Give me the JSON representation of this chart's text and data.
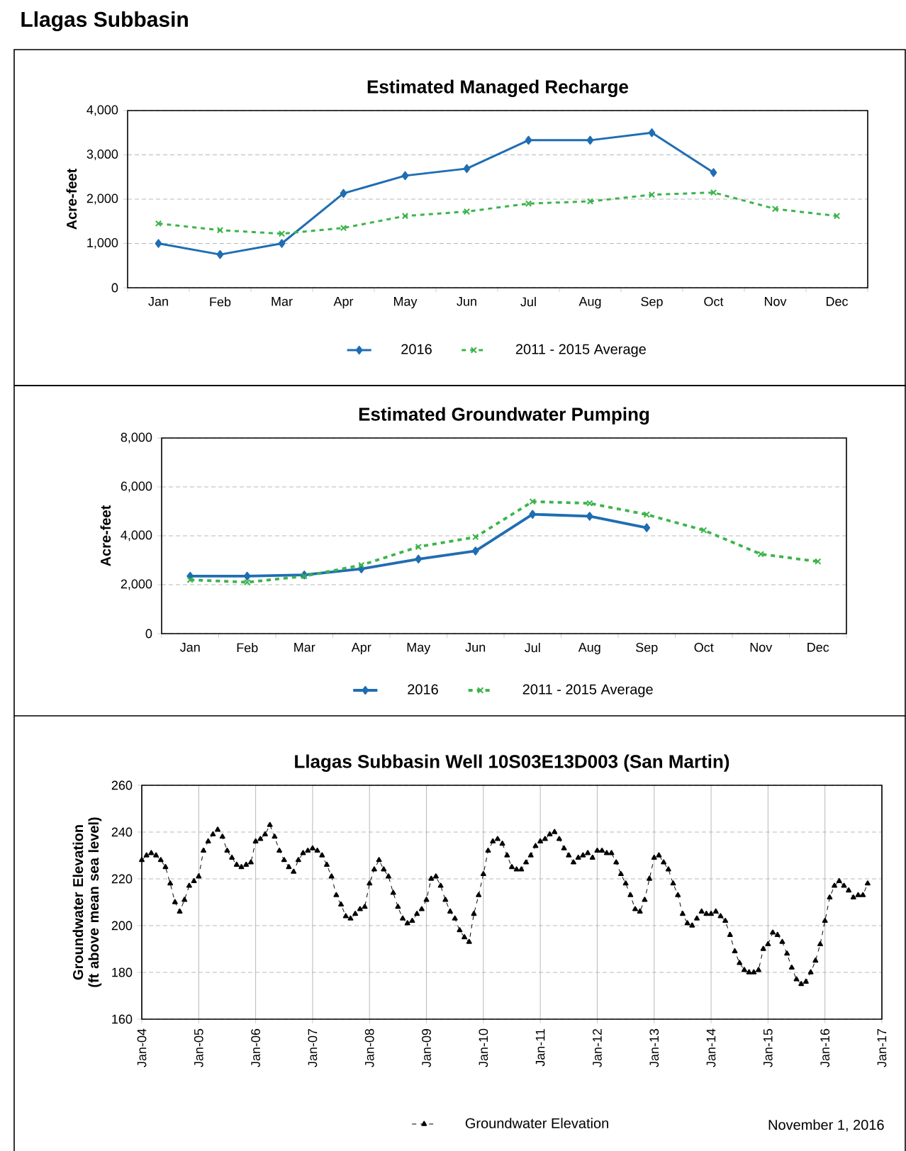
{
  "chart_data": [
    {
      "type": "line",
      "title": "Estimated Managed Recharge",
      "ylabel": "Acre-feet",
      "annotations": [
        "Llagas Subbasin"
      ],
      "categories": [
        "Jan",
        "Feb",
        "Mar",
        "Apr",
        "May",
        "Jun",
        "Jul",
        "Aug",
        "Sep",
        "Oct",
        "Nov",
        "Dec"
      ],
      "ylim": [
        0,
        4000
      ],
      "yticks": [
        0,
        {
          "value": 1000,
          "label": "1,000"
        },
        {
          "value": 2000,
          "label": "2,000"
        },
        {
          "value": 3000,
          "label": "3,000"
        },
        {
          "value": 4000,
          "label": "4,000"
        }
      ],
      "grid": "y",
      "legend": "bottom",
      "series": [
        {
          "name": "2016",
          "color": "#1f6db3",
          "marker": "diamond",
          "line_style": "solid",
          "values": [
            1000,
            750,
            1000,
            2130,
            2530,
            2690,
            3330,
            3330,
            3500,
            2600,
            null,
            null
          ]
        },
        {
          "name": "2011 - 2015 Average",
          "color": "#3cb44b",
          "marker": "cross",
          "line_style": "dashed",
          "values": [
            1450,
            1300,
            1220,
            1350,
            1620,
            1720,
            1900,
            1950,
            2100,
            2150,
            1780,
            1620
          ]
        }
      ]
    },
    {
      "type": "line",
      "title": "Estimated Groundwater Pumping",
      "ylabel": "Acre-feet",
      "categories": [
        "Jan",
        "Feb",
        "Mar",
        "Apr",
        "May",
        "Jun",
        "Jul",
        "Aug",
        "Sep",
        "Oct",
        "Nov",
        "Dec"
      ],
      "ylim": [
        0,
        8000
      ],
      "yticks": [
        0,
        {
          "value": 2000,
          "label": "2,000"
        },
        {
          "value": 4000,
          "label": "4,000"
        },
        {
          "value": 6000,
          "label": "6,000"
        },
        {
          "value": 8000,
          "label": "8,000"
        }
      ],
      "grid": "y",
      "legend": "bottom",
      "series": [
        {
          "name": "2016",
          "color": "#1f6db3",
          "marker": "diamond",
          "line_style": "solid",
          "values": [
            2350,
            2350,
            2400,
            2650,
            3050,
            3380,
            4880,
            4800,
            4330,
            null,
            null,
            null
          ]
        },
        {
          "name": "2011 - 2015 Average",
          "color": "#3cb44b",
          "marker": "cross",
          "line_style": "dashed",
          "values": [
            2200,
            2100,
            2350,
            2800,
            3550,
            3950,
            5400,
            5330,
            4870,
            4230,
            3250,
            2950
          ]
        }
      ]
    },
    {
      "type": "line",
      "title": "Llagas Subbasin Well 10S03E13D003 (San Martin)",
      "ylabel": "Groundwater Elevation (ft above mean sea level)",
      "annotations": [
        "November 1, 2016"
      ],
      "xlim": [
        "2004-01",
        "2017-01"
      ],
      "xticks": [
        {
          "value": "2004-01",
          "label": "Jan-04"
        },
        {
          "value": "2005-01",
          "label": "Jan-05"
        },
        {
          "value": "2006-01",
          "label": "Jan-06"
        },
        {
          "value": "2007-01",
          "label": "Jan-07"
        },
        {
          "value": "2008-01",
          "label": "Jan-08"
        },
        {
          "value": "2009-01",
          "label": "Jan-09"
        },
        {
          "value": "2010-01",
          "label": "Jan-10"
        },
        {
          "value": "2011-01",
          "label": "Jan-11"
        },
        {
          "value": "2012-01",
          "label": "Jan-12"
        },
        {
          "value": "2013-01",
          "label": "Jan-13"
        },
        {
          "value": "2014-01",
          "label": "Jan-14"
        },
        {
          "value": "2015-01",
          "label": "Jan-15"
        },
        {
          "value": "2016-01",
          "label": "Jan-16"
        },
        {
          "value": "2017-01",
          "label": "Jan-17"
        }
      ],
      "ylim": [
        160,
        260
      ],
      "yticks": [
        160,
        180,
        200,
        220,
        240,
        260
      ],
      "grid": true,
      "legend": "bottom",
      "x": [
        "2004-01",
        "2004-02",
        "2004-03",
        "2004-04",
        "2004-05",
        "2004-06",
        "2004-07",
        "2004-08",
        "2004-09",
        "2004-10",
        "2004-11",
        "2004-12",
        "2005-01",
        "2005-02",
        "2005-03",
        "2005-04",
        "2005-05",
        "2005-06",
        "2005-07",
        "2005-08",
        "2005-09",
        "2005-10",
        "2005-11",
        "2005-12",
        "2006-01",
        "2006-02",
        "2006-03",
        "2006-04",
        "2006-05",
        "2006-06",
        "2006-07",
        "2006-08",
        "2006-09",
        "2006-10",
        "2006-11",
        "2006-12",
        "2007-01",
        "2007-02",
        "2007-03",
        "2007-04",
        "2007-05",
        "2007-06",
        "2007-07",
        "2007-08",
        "2007-09",
        "2007-10",
        "2007-11",
        "2007-12",
        "2008-01",
        "2008-02",
        "2008-03",
        "2008-04",
        "2008-05",
        "2008-06",
        "2008-07",
        "2008-08",
        "2008-09",
        "2008-10",
        "2008-11",
        "2008-12",
        "2009-01",
        "2009-02",
        "2009-03",
        "2009-04",
        "2009-05",
        "2009-06",
        "2009-07",
        "2009-08",
        "2009-09",
        "2009-10",
        "2009-11",
        "2009-12",
        "2010-01",
        "2010-02",
        "2010-03",
        "2010-04",
        "2010-05",
        "2010-06",
        "2010-07",
        "2010-08",
        "2010-09",
        "2010-10",
        "2010-11",
        "2010-12",
        "2011-01",
        "2011-02",
        "2011-03",
        "2011-04",
        "2011-05",
        "2011-06",
        "2011-07",
        "2011-08",
        "2011-09",
        "2011-10",
        "2011-11",
        "2011-12",
        "2012-01",
        "2012-02",
        "2012-03",
        "2012-04",
        "2012-05",
        "2012-06",
        "2012-07",
        "2012-08",
        "2012-09",
        "2012-10",
        "2012-11",
        "2012-12",
        "2013-01",
        "2013-02",
        "2013-03",
        "2013-04",
        "2013-05",
        "2013-06",
        "2013-07",
        "2013-08",
        "2013-09",
        "2013-10",
        "2013-11",
        "2013-12",
        "2014-01",
        "2014-02",
        "2014-03",
        "2014-04",
        "2014-05",
        "2014-06",
        "2014-07",
        "2014-08",
        "2014-09",
        "2014-10",
        "2014-11",
        "2014-12",
        "2015-01",
        "2015-02",
        "2015-03",
        "2015-04",
        "2015-05",
        "2015-06",
        "2015-07",
        "2015-08",
        "2015-09",
        "2015-10",
        "2015-11",
        "2015-12",
        "2016-01",
        "2016-02",
        "2016-03",
        "2016-04",
        "2016-05",
        "2016-06",
        "2016-07",
        "2016-08",
        "2016-09",
        "2016-10"
      ],
      "series": [
        {
          "name": "Groundwater Elevation",
          "color": "#000000",
          "marker": "triangle",
          "line_style": "dashed",
          "values": [
            228,
            230,
            231,
            230,
            228,
            225,
            218,
            210,
            206,
            211,
            217,
            219,
            221,
            232,
            236,
            239,
            241,
            238,
            232,
            229,
            226,
            225,
            226,
            227,
            236,
            237,
            239,
            243,
            238,
            232,
            228,
            225,
            223,
            228,
            231,
            232,
            233,
            232,
            230,
            226,
            221,
            213,
            209,
            204,
            203,
            205,
            207,
            208,
            218,
            224,
            228,
            224,
            221,
            214,
            208,
            203,
            201,
            202,
            205,
            207,
            211,
            220,
            221,
            217,
            211,
            206,
            203,
            198,
            195,
            193,
            205,
            213,
            222,
            232,
            236,
            237,
            235,
            230,
            225,
            224,
            224,
            227,
            230,
            234,
            236,
            237,
            239,
            240,
            237,
            233,
            230,
            227,
            229,
            230,
            231,
            229,
            232,
            232,
            231,
            231,
            227,
            222,
            218,
            213,
            207,
            206,
            211,
            220,
            229,
            230,
            227,
            224,
            218,
            213,
            205,
            201,
            200,
            203,
            206,
            205,
            205,
            206,
            204,
            202,
            196,
            189,
            184,
            181,
            180,
            180,
            181,
            190,
            192,
            197,
            196,
            193,
            188,
            182,
            177,
            175,
            176,
            180,
            185,
            192,
            202,
            212,
            217,
            219,
            217,
            215,
            212,
            213,
            213,
            218
          ]
        }
      ]
    }
  ]
}
